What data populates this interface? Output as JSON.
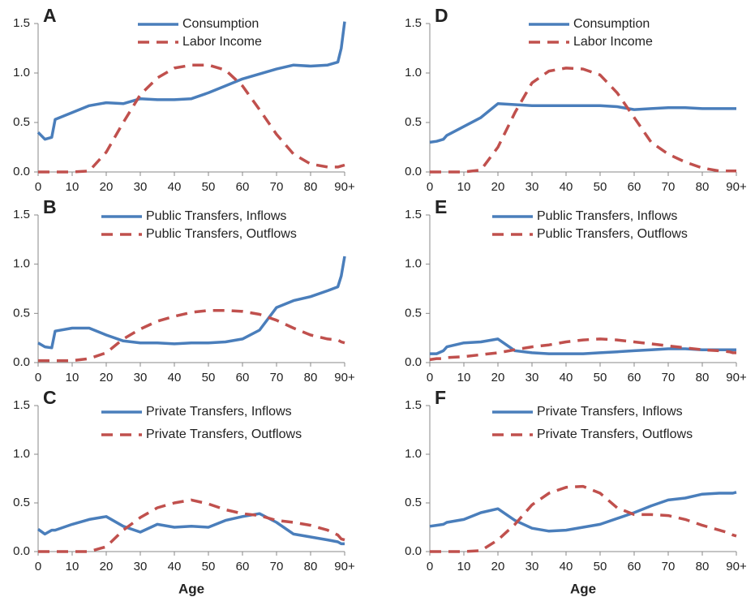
{
  "chart_data": [
    {
      "type": "line",
      "title": "A",
      "x": [
        0,
        2,
        4,
        5,
        10,
        15,
        20,
        25,
        30,
        35,
        40,
        45,
        50,
        55,
        60,
        65,
        70,
        75,
        80,
        85,
        88,
        89,
        90
      ],
      "xlim": [
        0,
        90
      ],
      "xticks": [
        0,
        10,
        20,
        30,
        40,
        50,
        60,
        70,
        80,
        {
          "value": 90,
          "label": "90+"
        }
      ],
      "ylim": [
        0,
        1.5
      ],
      "yticks": [
        {
          "value": 0,
          "label": "0.0"
        },
        0.5,
        {
          "value": 1,
          "label": "1.0"
        },
        1.5
      ],
      "series": [
        {
          "name": "Consumption",
          "color": "#4a7ebb",
          "dash": false,
          "values": [
            0.4,
            0.33,
            0.35,
            0.53,
            0.6,
            0.67,
            0.7,
            0.69,
            0.74,
            0.73,
            0.73,
            0.74,
            0.8,
            0.87,
            0.94,
            0.99,
            1.04,
            1.08,
            1.07,
            1.08,
            1.11,
            1.25,
            1.52
          ]
        },
        {
          "name": "Labor Income",
          "color": "#c0504d",
          "dash": true,
          "values": [
            0,
            0,
            0,
            0,
            0,
            0.01,
            0.2,
            0.5,
            0.78,
            0.95,
            1.05,
            1.08,
            1.08,
            1.03,
            0.87,
            0.63,
            0.38,
            0.18,
            0.08,
            0.05,
            0.05,
            0.06,
            0.07
          ]
        }
      ]
    },
    {
      "type": "line",
      "title": "B",
      "x": [
        0,
        2,
        4,
        5,
        10,
        15,
        20,
        25,
        30,
        35,
        40,
        45,
        50,
        55,
        60,
        65,
        70,
        75,
        80,
        85,
        88,
        89,
        90
      ],
      "xlim": [
        0,
        90
      ],
      "xticks": [
        0,
        10,
        20,
        30,
        40,
        50,
        60,
        70,
        80,
        {
          "value": 90,
          "label": "90+"
        }
      ],
      "ylim": [
        0,
        1.5
      ],
      "yticks": [
        {
          "value": 0,
          "label": "0.0"
        },
        0.5,
        {
          "value": 1,
          "label": "1.0"
        },
        1.5
      ],
      "series": [
        {
          "name": "Public Transfers, Inflows",
          "color": "#4a7ebb",
          "dash": false,
          "values": [
            0.2,
            0.16,
            0.15,
            0.32,
            0.35,
            0.35,
            0.28,
            0.22,
            0.2,
            0.2,
            0.19,
            0.2,
            0.2,
            0.21,
            0.24,
            0.33,
            0.56,
            0.63,
            0.67,
            0.73,
            0.77,
            0.88,
            1.08
          ]
        },
        {
          "name": "Public Transfers, Outflows",
          "color": "#c0504d",
          "dash": true,
          "values": [
            0.02,
            0.02,
            0.02,
            0.02,
            0.02,
            0.04,
            0.1,
            0.24,
            0.34,
            0.42,
            0.47,
            0.51,
            0.53,
            0.53,
            0.52,
            0.49,
            0.43,
            0.35,
            0.28,
            0.24,
            0.23,
            0.21,
            0.2
          ]
        }
      ]
    },
    {
      "type": "line",
      "title": "C",
      "xlabel": "Age",
      "x": [
        0,
        2,
        4,
        5,
        10,
        15,
        20,
        25,
        30,
        35,
        40,
        45,
        50,
        55,
        60,
        65,
        70,
        75,
        80,
        85,
        88,
        89,
        90
      ],
      "xlim": [
        0,
        90
      ],
      "xticks": [
        0,
        10,
        20,
        30,
        40,
        50,
        60,
        70,
        80,
        {
          "value": 90,
          "label": "90+"
        }
      ],
      "ylim": [
        0,
        1.5
      ],
      "yticks": [
        {
          "value": 0,
          "label": "0.0"
        },
        0.5,
        {
          "value": 1,
          "label": "1.0"
        },
        1.5
      ],
      "series": [
        {
          "name": "Private Transfers, Inflows",
          "color": "#4a7ebb",
          "dash": false,
          "values": [
            0.23,
            0.18,
            0.22,
            0.22,
            0.28,
            0.33,
            0.36,
            0.26,
            0.2,
            0.28,
            0.25,
            0.26,
            0.25,
            0.32,
            0.36,
            0.39,
            0.3,
            0.18,
            0.15,
            0.12,
            0.1,
            0.08,
            0.08
          ]
        },
        {
          "name": "Private Transfers, Outflows",
          "color": "#c0504d",
          "dash": true,
          "values": [
            0,
            0,
            0,
            0,
            0,
            0,
            0.05,
            0.22,
            0.35,
            0.45,
            0.5,
            0.53,
            0.49,
            0.43,
            0.39,
            0.37,
            0.32,
            0.3,
            0.27,
            0.22,
            0.17,
            0.13,
            0.12
          ]
        }
      ]
    },
    {
      "type": "line",
      "title": "D",
      "x": [
        0,
        2,
        4,
        5,
        10,
        15,
        20,
        25,
        30,
        35,
        40,
        45,
        50,
        55,
        60,
        65,
        70,
        75,
        80,
        85,
        88,
        89,
        90
      ],
      "xlim": [
        0,
        90
      ],
      "xticks": [
        0,
        10,
        20,
        30,
        40,
        50,
        60,
        70,
        80,
        {
          "value": 90,
          "label": "90+"
        }
      ],
      "ylim": [
        0,
        1.5
      ],
      "yticks": [
        {
          "value": 0,
          "label": "0.0"
        },
        0.5,
        {
          "value": 1,
          "label": "1.0"
        },
        1.5
      ],
      "series": [
        {
          "name": "Consumption",
          "color": "#4a7ebb",
          "dash": false,
          "values": [
            0.3,
            0.31,
            0.33,
            0.37,
            0.46,
            0.55,
            0.69,
            0.68,
            0.67,
            0.67,
            0.67,
            0.67,
            0.67,
            0.66,
            0.63,
            0.64,
            0.65,
            0.65,
            0.64,
            0.64,
            0.64,
            0.64,
            0.64
          ]
        },
        {
          "name": "Labor Income",
          "color": "#c0504d",
          "dash": true,
          "values": [
            0,
            0,
            0,
            0,
            0,
            0.02,
            0.25,
            0.6,
            0.9,
            1.02,
            1.05,
            1.04,
            0.98,
            0.8,
            0.55,
            0.3,
            0.18,
            0.1,
            0.04,
            0.01,
            0.01,
            0.01,
            0.01
          ]
        }
      ]
    },
    {
      "type": "line",
      "title": "E",
      "x": [
        0,
        2,
        4,
        5,
        10,
        15,
        20,
        25,
        30,
        35,
        40,
        45,
        50,
        55,
        60,
        65,
        70,
        75,
        80,
        85,
        88,
        89,
        90
      ],
      "xlim": [
        0,
        90
      ],
      "xticks": [
        0,
        10,
        20,
        30,
        40,
        50,
        60,
        70,
        80,
        {
          "value": 90,
          "label": "90+"
        }
      ],
      "ylim": [
        0,
        1.5
      ],
      "yticks": [
        {
          "value": 0,
          "label": "0.0"
        },
        0.5,
        {
          "value": 1,
          "label": "1.0"
        },
        1.5
      ],
      "series": [
        {
          "name": "Public Transfers, Inflows",
          "color": "#4a7ebb",
          "dash": false,
          "values": [
            0.09,
            0.09,
            0.12,
            0.16,
            0.2,
            0.21,
            0.24,
            0.12,
            0.1,
            0.09,
            0.09,
            0.09,
            0.1,
            0.11,
            0.12,
            0.13,
            0.14,
            0.14,
            0.13,
            0.13,
            0.13,
            0.13,
            0.13
          ]
        },
        {
          "name": "Public Transfers, Outflows",
          "color": "#c0504d",
          "dash": true,
          "values": [
            0.03,
            0.04,
            0.04,
            0.05,
            0.06,
            0.08,
            0.1,
            0.13,
            0.16,
            0.18,
            0.21,
            0.23,
            0.24,
            0.23,
            0.21,
            0.19,
            0.17,
            0.15,
            0.13,
            0.12,
            0.11,
            0.1,
            0.1
          ]
        }
      ]
    },
    {
      "type": "line",
      "title": "F",
      "xlabel": "Age",
      "x": [
        0,
        2,
        4,
        5,
        10,
        15,
        20,
        25,
        30,
        35,
        40,
        45,
        50,
        55,
        60,
        65,
        70,
        75,
        80,
        85,
        88,
        89,
        90
      ],
      "xlim": [
        0,
        90
      ],
      "xticks": [
        0,
        10,
        20,
        30,
        40,
        50,
        60,
        70,
        80,
        {
          "value": 90,
          "label": "90+"
        }
      ],
      "ylim": [
        0,
        1.5
      ],
      "yticks": [
        {
          "value": 0,
          "label": "0.0"
        },
        0.5,
        {
          "value": 1,
          "label": "1.0"
        },
        1.5
      ],
      "series": [
        {
          "name": "Private Transfers, Inflows",
          "color": "#4a7ebb",
          "dash": false,
          "values": [
            0.26,
            0.27,
            0.28,
            0.3,
            0.33,
            0.4,
            0.44,
            0.32,
            0.24,
            0.21,
            0.22,
            0.25,
            0.28,
            0.34,
            0.4,
            0.47,
            0.53,
            0.55,
            0.59,
            0.6,
            0.6,
            0.6,
            0.61
          ]
        },
        {
          "name": "Private Transfers, Outflows",
          "color": "#c0504d",
          "dash": true,
          "values": [
            0,
            0,
            0,
            0,
            0,
            0.01,
            0.12,
            0.28,
            0.48,
            0.6,
            0.66,
            0.67,
            0.6,
            0.45,
            0.38,
            0.38,
            0.37,
            0.33,
            0.27,
            0.22,
            0.19,
            0.17,
            0.16
          ]
        }
      ]
    }
  ]
}
